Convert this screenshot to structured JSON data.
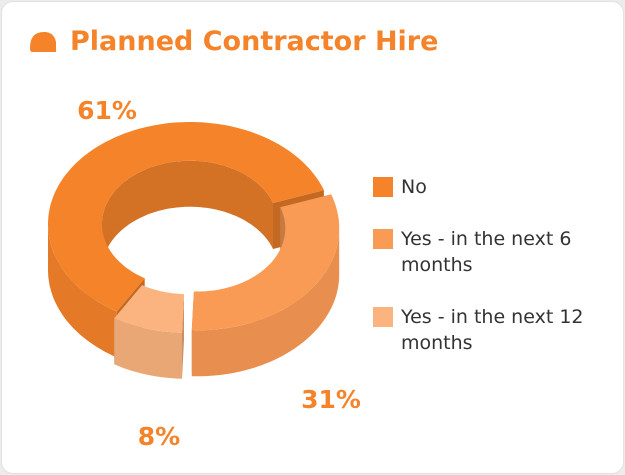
{
  "chart_data": {
    "type": "pie",
    "title": "Planned Contractor Hire",
    "categories": [
      "No",
      "Yes - in the next 6 months",
      "Yes - in the next 12 months"
    ],
    "values": [
      61,
      31,
      8
    ],
    "value_labels": [
      "61%",
      "31%",
      "8%"
    ],
    "colors": [
      "#f5832a",
      "#f99a55",
      "#fbb47f"
    ],
    "legend": "right"
  }
}
